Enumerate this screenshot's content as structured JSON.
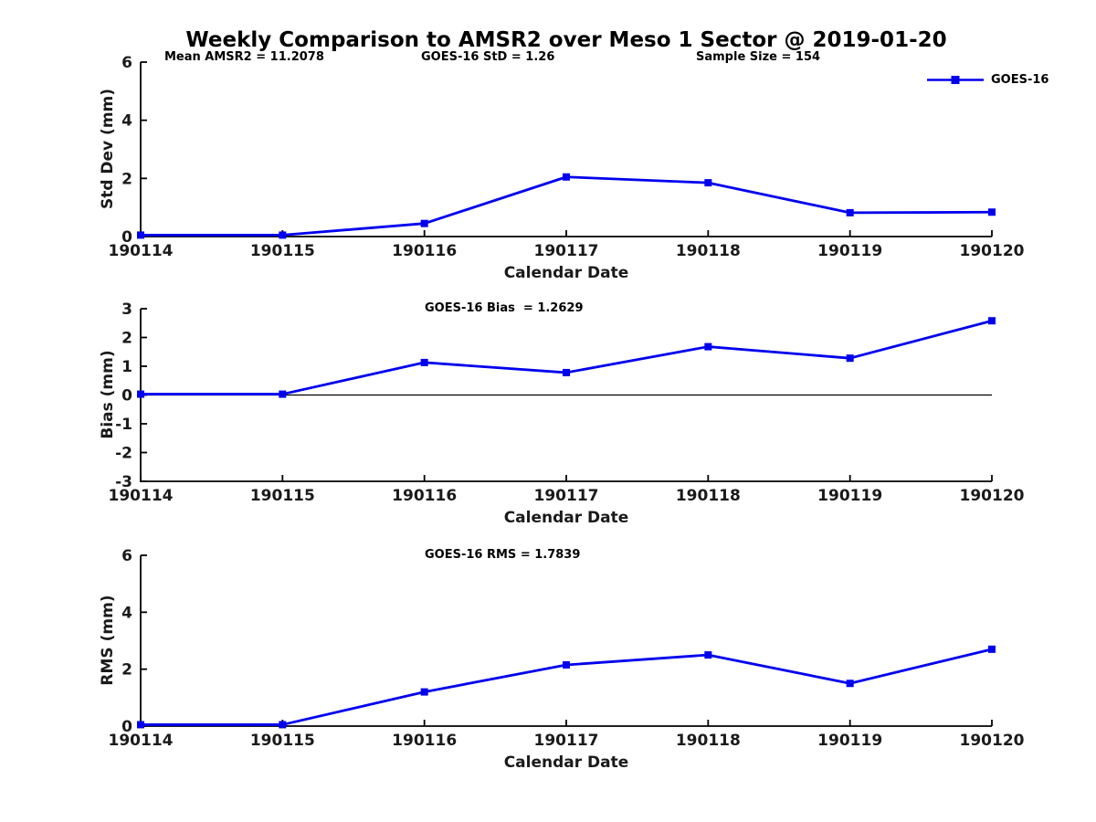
{
  "figure": {
    "title": "Weekly Comparison to AMSR2 over Meso 1 Sector @ 2019-01-20"
  },
  "colors": {
    "line": "#0000EE",
    "axis": "#000000",
    "text": "#000000",
    "background": "#ffffff"
  },
  "chart_data": [
    {
      "type": "line",
      "title": "",
      "categories": [
        "190114",
        "190115",
        "190116",
        "190117",
        "190118",
        "190119",
        "190120"
      ],
      "series": [
        {
          "name": "GOES-16",
          "color": "#0000EE",
          "marker": "square",
          "values": [
            0.05,
            0.05,
            0.45,
            2.05,
            1.85,
            0.82,
            0.84
          ]
        }
      ],
      "xlabel": "Calendar Date",
      "ylabel": "Std Dev (mm)",
      "ylim": [
        0,
        6
      ],
      "yticks": [
        0,
        2,
        4,
        6
      ],
      "grid": false,
      "zero_line": false,
      "legend_position": "top-right",
      "annotations": [
        "Mean AMSR2 = 11.2078",
        "GOES-16 StD = 1.26",
        "Sample Size = 154"
      ]
    },
    {
      "type": "line",
      "title": "",
      "categories": [
        "190114",
        "190115",
        "190116",
        "190117",
        "190118",
        "190119",
        "190120"
      ],
      "series": [
        {
          "name": "GOES-16",
          "color": "#0000EE",
          "marker": "square",
          "values": [
            0.03,
            0.03,
            1.13,
            0.78,
            1.68,
            1.28,
            2.58
          ]
        }
      ],
      "xlabel": "Calendar Date",
      "ylabel": "Bias (mm)",
      "ylim": [
        -3,
        3
      ],
      "yticks": [
        -3,
        -2,
        -1,
        0,
        1,
        2,
        3
      ],
      "grid": false,
      "zero_line": true,
      "legend_position": "none",
      "annotation": "GOES-16 Bias  = 1.2629"
    },
    {
      "type": "line",
      "title": "",
      "categories": [
        "190114",
        "190115",
        "190116",
        "190117",
        "190118",
        "190119",
        "190120"
      ],
      "series": [
        {
          "name": "GOES-16",
          "color": "#0000EE",
          "marker": "square",
          "values": [
            0.05,
            0.05,
            1.2,
            2.15,
            2.5,
            1.5,
            2.7
          ]
        }
      ],
      "xlabel": "Calendar Date",
      "ylabel": "RMS (mm)",
      "ylim": [
        0,
        6
      ],
      "yticks": [
        0,
        2,
        4,
        6
      ],
      "grid": false,
      "zero_line": false,
      "legend_position": "none",
      "annotation": "GOES-16 RMS = 1.7839"
    }
  ]
}
